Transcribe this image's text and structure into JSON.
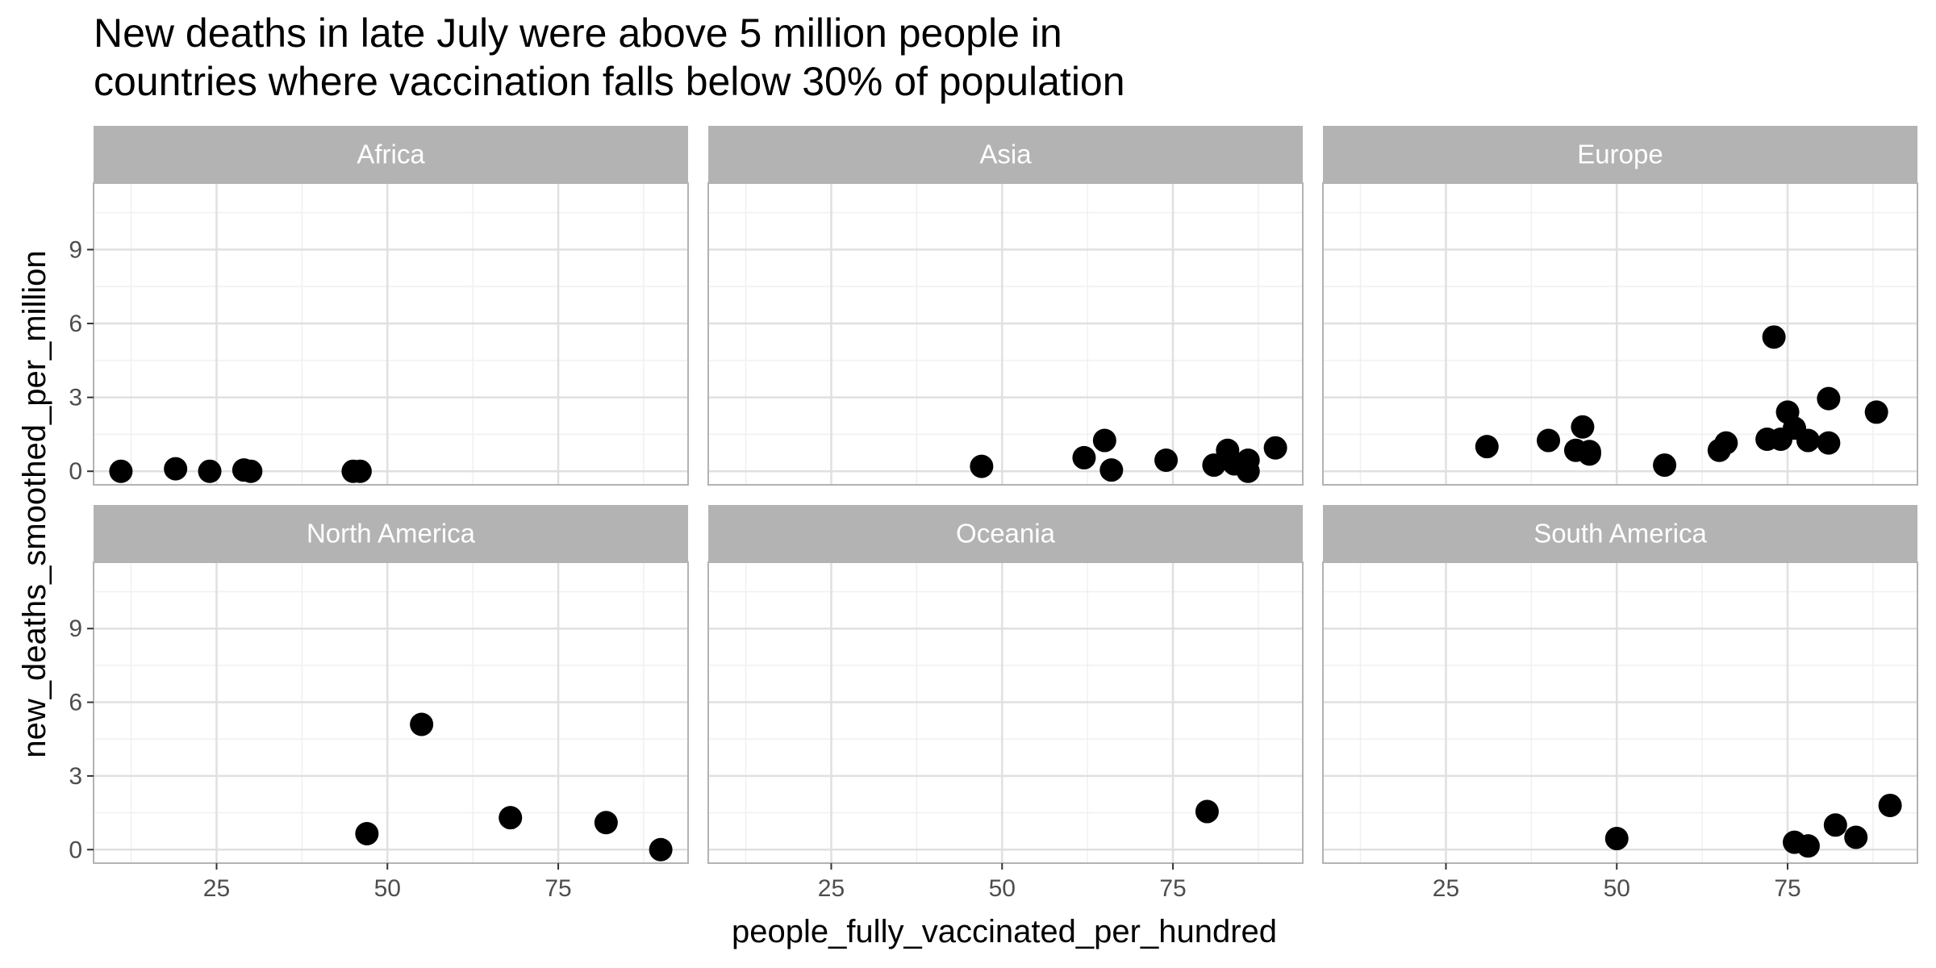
{
  "chart_data": {
    "type": "scatter",
    "title_lines": [
      "New deaths in late July were above 5 million people in",
      " countries where vaccination falls below 30% of population"
    ],
    "xlabel": "people_fully_vaccinated_per_hundred",
    "ylabel": "new_deaths_smoothed_per_million",
    "xlim": [
      7,
      94
    ],
    "ylim": [
      -0.55,
      11.7
    ],
    "x_ticks": [
      25,
      50,
      75
    ],
    "y_ticks": [
      0,
      3,
      6,
      9
    ],
    "grid": true,
    "colors": {
      "point": "#000000",
      "strip": "#b3b3b3",
      "strip_text": "#ffffff",
      "panel_border": "#b3b3b3",
      "grid_major": "#e0e0e0",
      "grid_minor": "#f0f0f0",
      "tick_text": "#4d4d4d"
    },
    "facets": [
      {
        "name": "Africa",
        "points": [
          [
            11,
            0.0
          ],
          [
            19,
            0.1
          ],
          [
            24,
            0.0
          ],
          [
            29,
            0.05
          ],
          [
            30,
            0.0
          ],
          [
            45,
            0.0
          ],
          [
            46,
            0.0
          ]
        ]
      },
      {
        "name": "Asia",
        "points": [
          [
            47,
            0.2
          ],
          [
            62,
            0.55
          ],
          [
            65,
            1.25
          ],
          [
            66,
            0.05
          ],
          [
            74,
            0.45
          ],
          [
            81,
            0.25
          ],
          [
            83,
            0.85
          ],
          [
            84,
            0.3
          ],
          [
            86,
            0.45
          ],
          [
            86,
            0.0
          ],
          [
            90,
            0.95
          ]
        ]
      },
      {
        "name": "Europe",
        "points": [
          [
            31,
            1.0
          ],
          [
            40,
            1.25
          ],
          [
            44,
            0.85
          ],
          [
            45,
            1.8
          ],
          [
            46,
            0.7
          ],
          [
            46,
            0.8
          ],
          [
            57,
            0.25
          ],
          [
            65,
            0.85
          ],
          [
            66,
            1.15
          ],
          [
            72,
            1.3
          ],
          [
            73,
            5.45
          ],
          [
            74,
            1.3
          ],
          [
            75,
            2.4
          ],
          [
            76,
            1.75
          ],
          [
            78,
            1.25
          ],
          [
            81,
            1.15
          ],
          [
            81,
            2.95
          ],
          [
            88,
            2.4
          ]
        ]
      },
      {
        "name": "North America",
        "points": [
          [
            47,
            0.65
          ],
          [
            55,
            5.1
          ],
          [
            68,
            1.3
          ],
          [
            82,
            1.1
          ],
          [
            90,
            0.0
          ]
        ]
      },
      {
        "name": "Oceania",
        "points": [
          [
            80,
            1.55
          ]
        ]
      },
      {
        "name": "South America",
        "points": [
          [
            50,
            0.45
          ],
          [
            76,
            0.3
          ],
          [
            78,
            0.15
          ],
          [
            82,
            1.0
          ],
          [
            85,
            0.5
          ],
          [
            90,
            1.8
          ]
        ]
      }
    ]
  }
}
